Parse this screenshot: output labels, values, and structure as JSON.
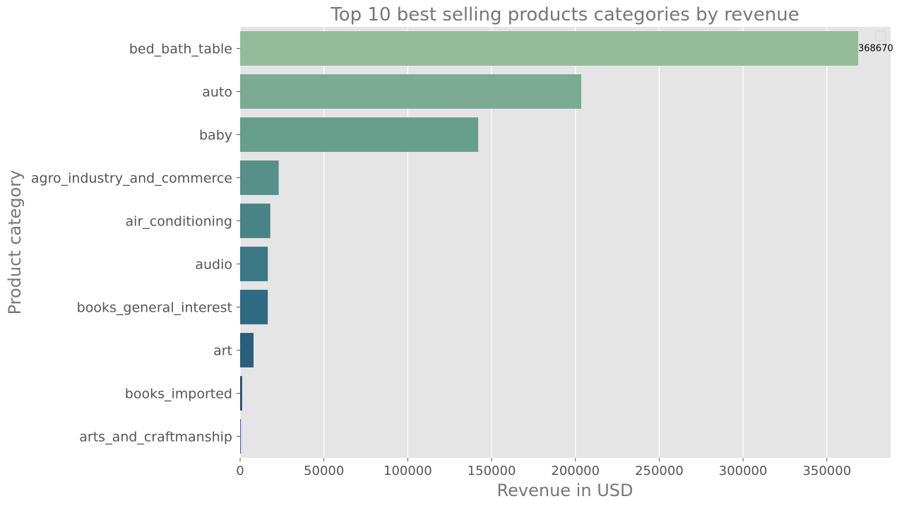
{
  "chart_data": {
    "type": "bar",
    "orientation": "horizontal",
    "title": "Top 10 best selling products categories by revenue",
    "xlabel": "Revenue in USD",
    "ylabel": "Product category",
    "categories": [
      "bed_bath_table",
      "auto",
      "baby",
      "agro_industry_and_commerce",
      "air_conditioning",
      "audio",
      "books_general_interest",
      "art",
      "books_imported",
      "arts_and_craftmanship"
    ],
    "values": [
      368670,
      203500,
      142000,
      23000,
      18000,
      16500,
      16500,
      8000,
      1200,
      500
    ],
    "xlim": [
      0,
      388000
    ],
    "xticks": [
      0,
      50000,
      100000,
      150000,
      200000,
      250000,
      300000,
      350000
    ],
    "xtick_labels": [
      "0",
      "50000",
      "100000",
      "150000",
      "200000",
      "250000",
      "300000",
      "350000"
    ],
    "data_labels": [
      {
        "category": "bed_bath_table",
        "text": "368670"
      }
    ],
    "bar_colors": [
      "#93bb98",
      "#7bab93",
      "#669f8b",
      "#578f89",
      "#488386",
      "#3b7886",
      "#2f6b80",
      "#2a5f7d",
      "#2c4d7a",
      "#5a64a3"
    ],
    "grid": true,
    "background": "#e5e5e5",
    "legend": "empty box at top-right"
  }
}
